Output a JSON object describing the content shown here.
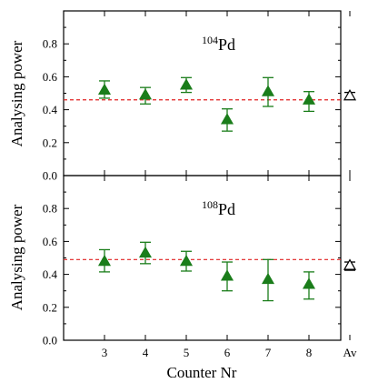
{
  "chart_data": [
    {
      "type": "scatter",
      "isotope_mass": "104",
      "isotope_symbol": "Pd",
      "ylabel": "Analysing power",
      "xlabel": "",
      "x_tick_labels": [
        "3",
        "4",
        "5",
        "6",
        "7",
        "8",
        "Av"
      ],
      "ylim": [
        0.0,
        1.0
      ],
      "y_ticks": [
        "0.0",
        "0.2",
        "0.4",
        "0.6",
        "0.8"
      ],
      "series": [
        {
          "marker": "filled-triangle",
          "color": "#1a7d1a",
          "points": [
            {
              "x": "3",
              "y": 0.52,
              "err_low": 0.47,
              "err_high": 0.575
            },
            {
              "x": "4",
              "y": 0.49,
              "err_low": 0.435,
              "err_high": 0.535
            },
            {
              "x": "5",
              "y": 0.55,
              "err_low": 0.505,
              "err_high": 0.595
            },
            {
              "x": "6",
              "y": 0.34,
              "err_low": 0.27,
              "err_high": 0.405
            },
            {
              "x": "7",
              "y": 0.51,
              "err_low": 0.42,
              "err_high": 0.595
            },
            {
              "x": "8",
              "y": 0.46,
              "err_low": 0.39,
              "err_high": 0.51
            }
          ]
        },
        {
          "marker": "open-triangle",
          "color": "#000000",
          "points": [
            {
              "x": "Av",
              "y": 0.485,
              "err_low": 0.465,
              "err_high": 0.505
            }
          ]
        }
      ],
      "reference_line": {
        "y": 0.46,
        "style": "dashed",
        "color": "#e02020"
      }
    },
    {
      "type": "scatter",
      "isotope_mass": "108",
      "isotope_symbol": "Pd",
      "ylabel": "Analysing power",
      "xlabel": "Counter Nr",
      "x_tick_labels": [
        "3",
        "4",
        "5",
        "6",
        "7",
        "8",
        "Av"
      ],
      "ylim": [
        0.0,
        1.0
      ],
      "y_ticks": [
        "0.0",
        "0.2",
        "0.4",
        "0.6",
        "0.8"
      ],
      "series": [
        {
          "marker": "filled-triangle",
          "color": "#1a7d1a",
          "points": [
            {
              "x": "3",
              "y": 0.48,
              "err_low": 0.415,
              "err_high": 0.55
            },
            {
              "x": "4",
              "y": 0.53,
              "err_low": 0.465,
              "err_high": 0.595
            },
            {
              "x": "5",
              "y": 0.48,
              "err_low": 0.42,
              "err_high": 0.54
            },
            {
              "x": "6",
              "y": 0.39,
              "err_low": 0.3,
              "err_high": 0.475
            },
            {
              "x": "7",
              "y": 0.37,
              "err_low": 0.24,
              "err_high": 0.49
            },
            {
              "x": "8",
              "y": 0.34,
              "err_low": 0.25,
              "err_high": 0.415
            }
          ]
        },
        {
          "marker": "open-triangle",
          "color": "#000000",
          "points": [
            {
              "x": "Av",
              "y": 0.455,
              "err_low": 0.425,
              "err_high": 0.475
            }
          ]
        }
      ],
      "reference_line": {
        "y": 0.49,
        "style": "dashed",
        "color": "#e02020"
      }
    }
  ]
}
